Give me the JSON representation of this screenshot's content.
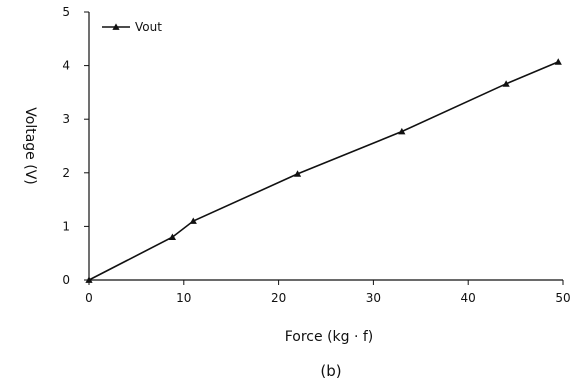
{
  "chart_data": {
    "type": "line",
    "xlabel": "Force (kg · f)",
    "ylabel": "Voltage (V)",
    "caption": "(b)",
    "xlim": [
      0,
      50
    ],
    "ylim": [
      0,
      5
    ],
    "x_ticks": [
      0,
      10,
      20,
      30,
      40,
      50
    ],
    "y_ticks": [
      0,
      1,
      2,
      3,
      4,
      5
    ],
    "x_tick_labels": [
      "0",
      "10",
      "20",
      "30",
      "40",
      "50"
    ],
    "y_tick_labels": [
      "0",
      "1",
      "2",
      "3",
      "4",
      "5"
    ],
    "legend": {
      "position": "top-left",
      "entries": [
        "Vout"
      ]
    },
    "grid": false,
    "series": [
      {
        "name": "Vout",
        "marker": "triangle",
        "color": "#111111",
        "x": [
          0,
          8.8,
          11,
          22,
          33,
          44,
          49.5
        ],
        "y": [
          0,
          0.8,
          1.1,
          1.98,
          2.77,
          3.66,
          4.07
        ]
      }
    ]
  }
}
